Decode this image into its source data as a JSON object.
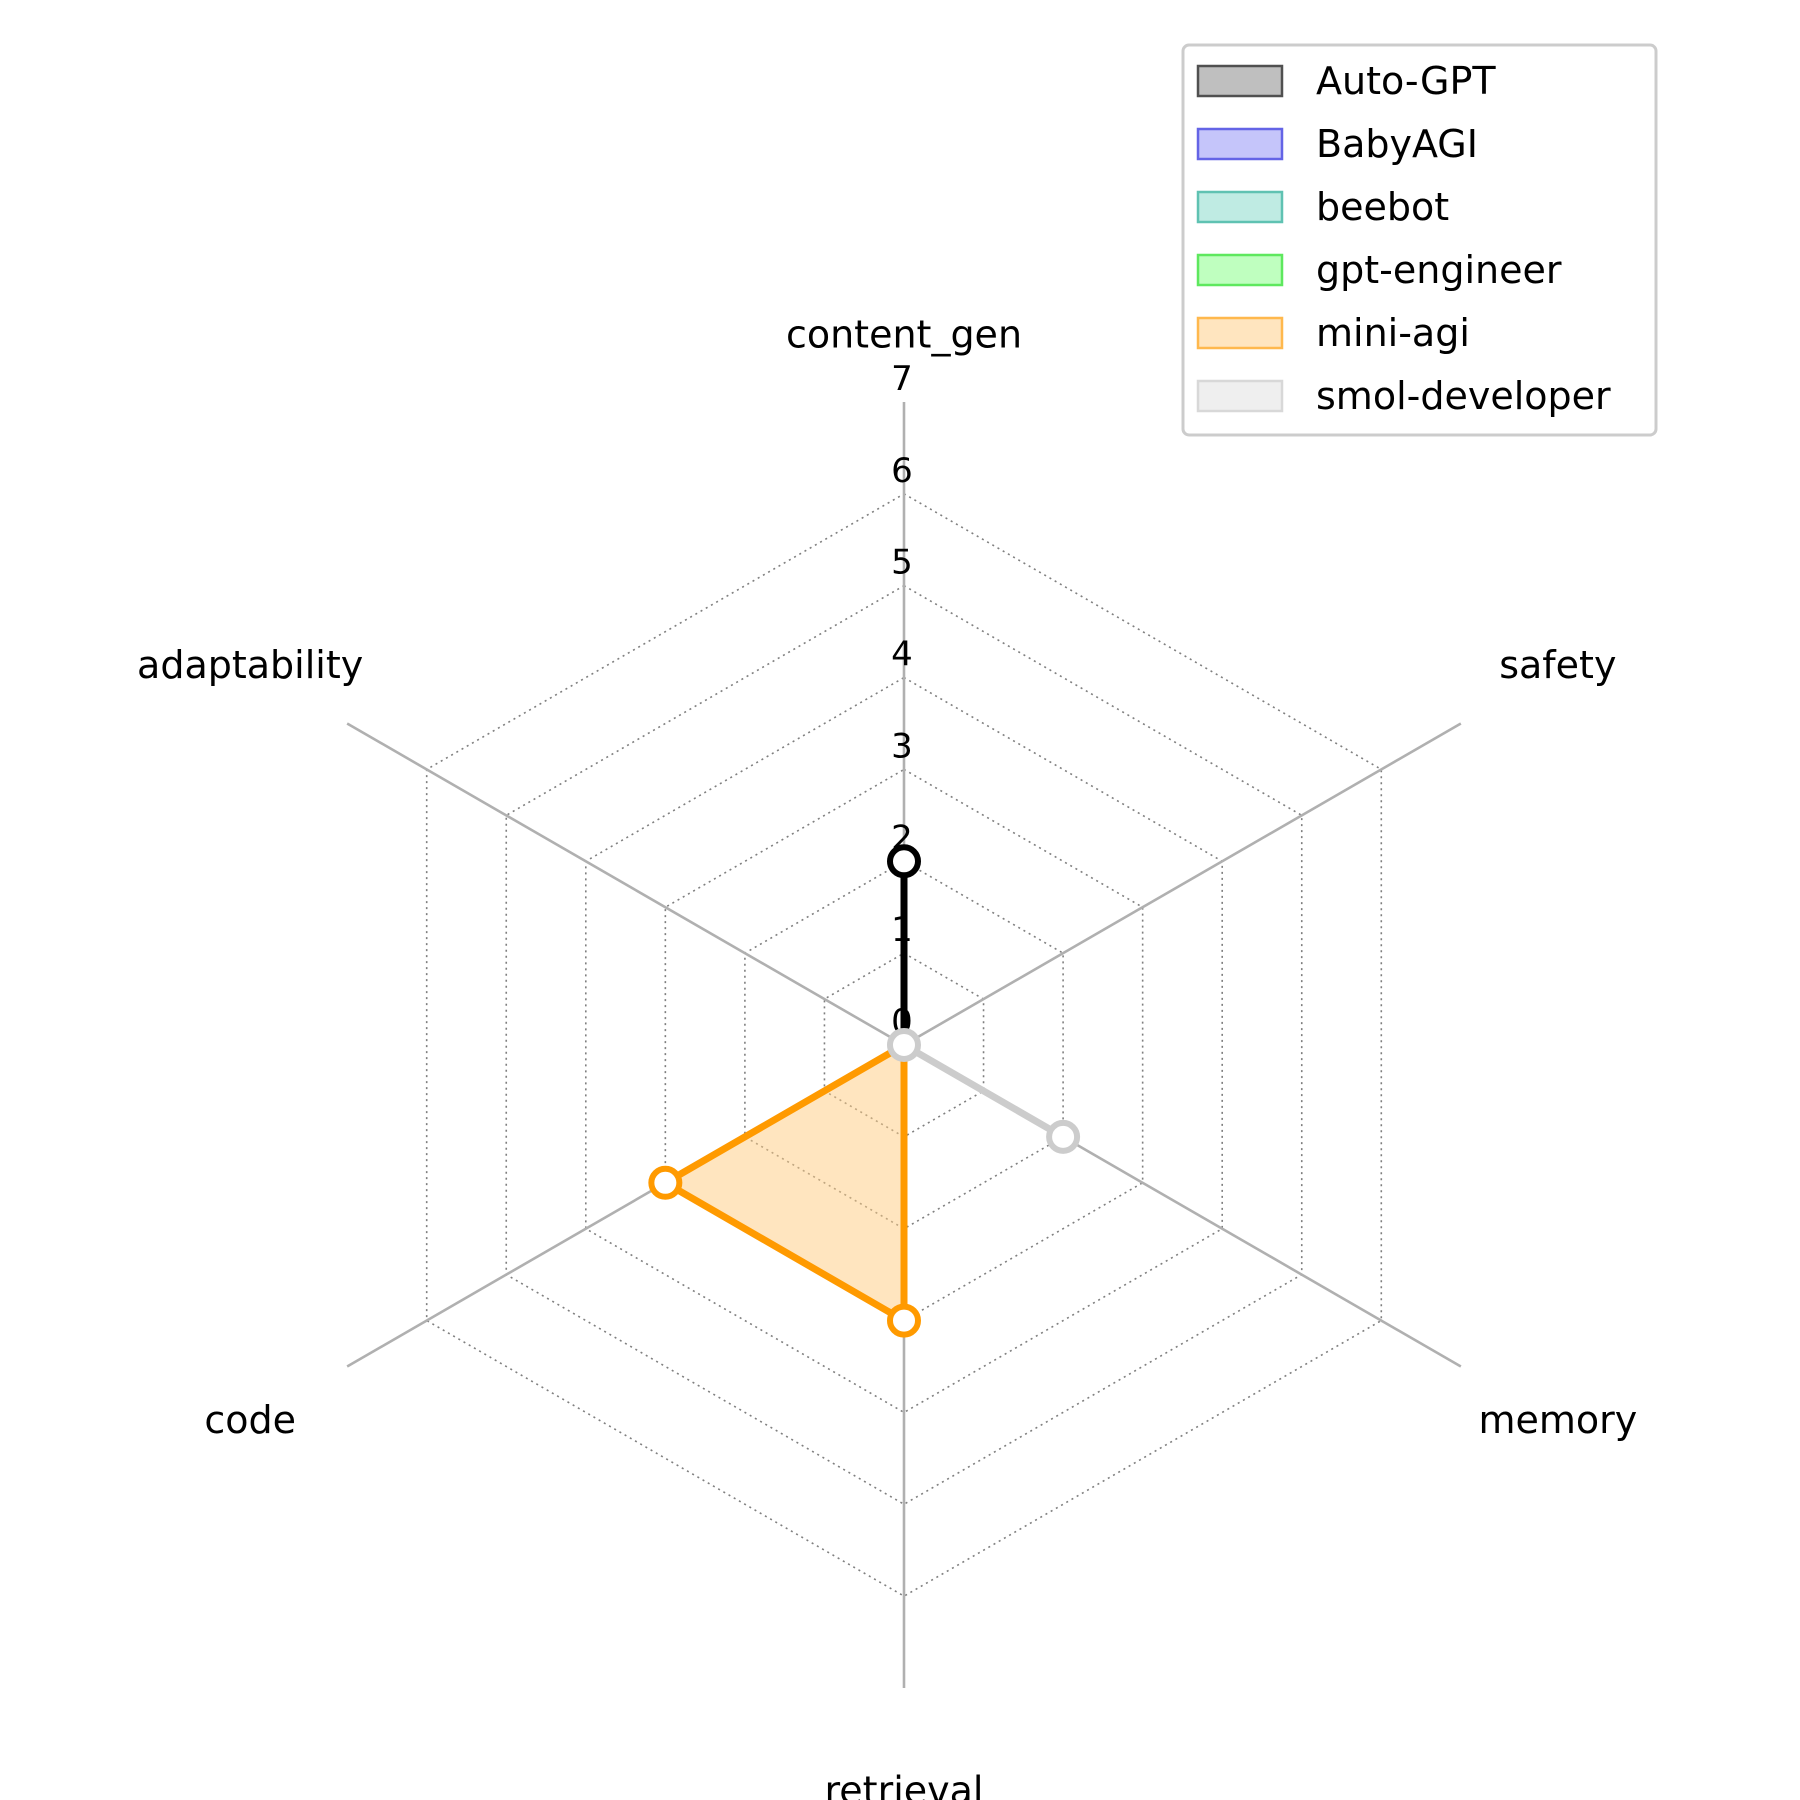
{
  "chart_data": {
    "type": "radar",
    "axes": [
      "content_gen",
      "safety",
      "memory",
      "retrieval",
      "code",
      "adaptability"
    ],
    "rlim": [
      0,
      7
    ],
    "ticks": [
      "0",
      "1",
      "2",
      "3",
      "4",
      "5",
      "6",
      "7"
    ],
    "grid": true,
    "legend_position": "top-right",
    "series": [
      {
        "name": "Auto-GPT",
        "values": [
          2,
          0,
          0,
          0,
          0,
          0
        ],
        "line_color": "#000000",
        "fill_color": "#808080",
        "fill_opacity": 0.5,
        "edge_color": "#505050"
      },
      {
        "name": "BabyAGI",
        "values": [
          0,
          0,
          0,
          0,
          0,
          0
        ],
        "line_color": "#1f1fdc",
        "fill_color": "#8c8cf5",
        "fill_opacity": 0.5,
        "edge_color": "#6464e6"
      },
      {
        "name": "beebot",
        "values": [
          0,
          0,
          0,
          0,
          0,
          0
        ],
        "line_color": "#1a9f8a",
        "fill_color": "#80d8c8",
        "fill_opacity": 0.5,
        "edge_color": "#5fc2b2"
      },
      {
        "name": "gpt-engineer",
        "values": [
          0,
          0,
          0,
          0,
          0,
          0
        ],
        "line_color": "#2ecc2e",
        "fill_color": "#80ff80",
        "fill_opacity": 0.5,
        "edge_color": "#5ee85e"
      },
      {
        "name": "mini-agi",
        "values": [
          0,
          0,
          0,
          3,
          3,
          0
        ],
        "line_color": "#ff9a00",
        "fill_color": "#ffcc80",
        "fill_opacity": 0.5,
        "edge_color": "#ffb84d"
      },
      {
        "name": "smol-developer",
        "values": [
          0,
          0,
          2,
          0,
          0,
          0
        ],
        "line_color": "#cccccc",
        "fill_color": "#e0e0e0",
        "fill_opacity": 0.5,
        "edge_color": "#d8d8d8"
      }
    ]
  }
}
